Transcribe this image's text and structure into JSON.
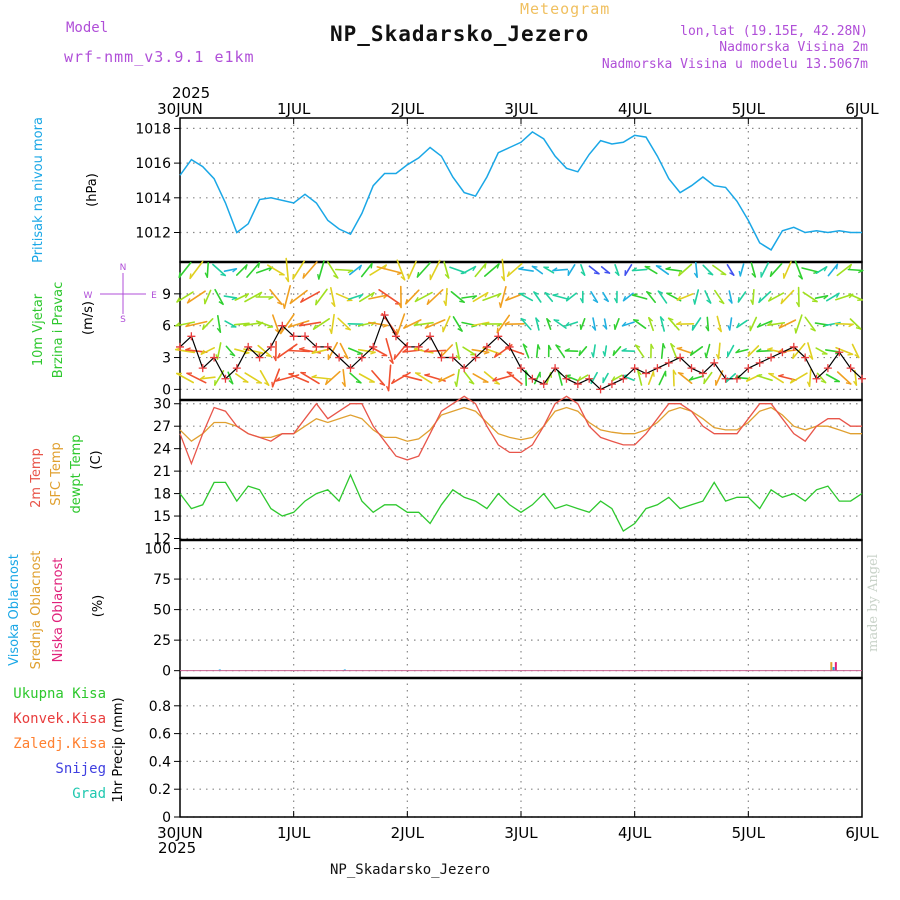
{
  "header": {
    "model_label": "Model",
    "model_name": "wrf-nmm_v3.9.1 e1km",
    "meteogram_label": "Meteogram",
    "station_title": "NP_Skadarsko_Jezero",
    "lonlat": "lon,lat (19.15E, 42.28N)",
    "altitude": "Nadmorska Visina 2m",
    "model_altitude": "Nadmorska Visina u modelu 13.5067m"
  },
  "footer": {
    "station": "NP_Skadarsko_Jezero",
    "made_by": "made by Angel"
  },
  "time_axis": {
    "year": "2025",
    "labels": [
      "30JUN",
      "1JUL",
      "2JUL",
      "3JUL",
      "4JUL",
      "5JUL",
      "6JUL"
    ]
  },
  "colors": {
    "pressure": "#1aa7e6",
    "temp2m": "#e8554a",
    "sfc": "#e0a030",
    "dewpt": "#2ec82e",
    "high_cloud": "#1aa7e6",
    "mid_cloud": "#e0a030",
    "low_cloud": "#e0207a",
    "precip_total": "#2ec82e",
    "precip_conv": "#e83c3c",
    "precip_frozen": "#ff8030",
    "precip_snow": "#4040e0",
    "precip_graupel": "#20c8b0",
    "wind_title": "#2ec82e",
    "wind_mark": "#e83c3c"
  },
  "chart_data": [
    {
      "type": "line",
      "panel": "pressure",
      "ylabel_lines": [
        "Pritisak na nivou mora"
      ],
      "unit": "(hPa)",
      "ylim": [
        1010.3,
        1018.6
      ],
      "yticks": [
        1012,
        1014,
        1016,
        1018
      ],
      "grid": true,
      "x_days": [
        0,
        0.1,
        0.2,
        0.3,
        0.4,
        0.5,
        0.6,
        0.7,
        0.8,
        1.0,
        1.1,
        1.2,
        1.3,
        1.4,
        1.5,
        1.6,
        1.7,
        1.8,
        1.9,
        2.0,
        2.1,
        2.2,
        2.3,
        2.4,
        2.5,
        2.6,
        2.7,
        2.8,
        2.9,
        3.0,
        3.1,
        3.2,
        3.3,
        3.4,
        3.5,
        3.6,
        3.7,
        3.8,
        3.9,
        4.0,
        4.1,
        4.2,
        4.3,
        4.4,
        4.5,
        4.6,
        4.7,
        4.8,
        4.9,
        5.0,
        5.1,
        5.2,
        5.3,
        5.4,
        5.5,
        5.6,
        5.7,
        5.8,
        5.9,
        6.0
      ],
      "series": [
        {
          "values": [
            1015.3,
            1016.2,
            1015.8,
            1015.1,
            1013.7,
            1012.0,
            1012.5,
            1013.9,
            1014.0,
            1013.7,
            1014.2,
            1013.7,
            1012.7,
            1012.2,
            1011.9,
            1013.1,
            1014.7,
            1015.4,
            1015.4,
            1015.9,
            1016.3,
            1016.9,
            1016.4,
            1015.2,
            1014.3,
            1014.1,
            1015.2,
            1016.6,
            1016.9,
            1017.2,
            1017.8,
            1017.4,
            1016.4,
            1015.7,
            1015.5,
            1016.5,
            1017.3,
            1017.1,
            1017.2,
            1017.6,
            1017.5,
            1016.4,
            1015.1,
            1014.3,
            1014.7,
            1015.2,
            1014.7,
            1014.6,
            1013.8,
            1012.7,
            1011.4,
            1011.0,
            1012.1,
            1012.3,
            1012.0,
            1012.1,
            1012.0,
            1012.1,
            1012.0,
            1012.0
          ]
        }
      ]
    },
    {
      "type": "line",
      "panel": "wind",
      "ylabel_lines": [
        "10m Vjetar",
        "Brzina i Pravac"
      ],
      "unit": "(m/s)",
      "compass": [
        "N",
        "W",
        "E",
        "S"
      ],
      "ylim": [
        -1,
        12
      ],
      "yticks": [
        0,
        3,
        6,
        9
      ],
      "grid": true,
      "x_days": [
        0,
        0.1,
        0.2,
        0.3,
        0.4,
        0.5,
        0.6,
        0.7,
        0.8,
        0.9,
        1.0,
        1.1,
        1.2,
        1.3,
        1.4,
        1.5,
        1.6,
        1.7,
        1.8,
        1.9,
        2.0,
        2.1,
        2.2,
        2.3,
        2.4,
        2.5,
        2.6,
        2.7,
        2.8,
        2.9,
        3.0,
        3.1,
        3.2,
        3.3,
        3.4,
        3.5,
        3.6,
        3.7,
        3.8,
        3.9,
        4.0,
        4.1,
        4.2,
        4.3,
        4.4,
        4.5,
        4.6,
        4.7,
        4.8,
        4.9,
        5.0,
        5.1,
        5.2,
        5.3,
        5.4,
        5.5,
        5.6,
        5.7,
        5.8,
        5.9,
        6.0
      ],
      "series": [
        {
          "name": "speed",
          "values": [
            4,
            5,
            2,
            3,
            1,
            2,
            4,
            3,
            4,
            6,
            5,
            5,
            4,
            4,
            3,
            2,
            3,
            4,
            7,
            5,
            4,
            4,
            5,
            3,
            3,
            2,
            3,
            4,
            5,
            4,
            2,
            1,
            0.5,
            2,
            1,
            0.5,
            1,
            0,
            0.5,
            1,
            2,
            1.5,
            2,
            2.5,
            3,
            2,
            1.5,
            2.5,
            1,
            1,
            2,
            2.5,
            3,
            3.5,
            4,
            3,
            1,
            2,
            3.5,
            2,
            1
          ]
        }
      ]
    },
    {
      "type": "line",
      "panel": "temperature",
      "ylabel_lines": [
        "2m Temp",
        "SFC Temp",
        "dewpt Temp"
      ],
      "unit": "(C)",
      "ylim": [
        11.8,
        30.5
      ],
      "yticks": [
        12,
        15,
        18,
        21,
        24,
        27,
        30
      ],
      "grid": true,
      "x_days": [
        0,
        0.1,
        0.2,
        0.3,
        0.4,
        0.5,
        0.6,
        0.7,
        0.8,
        0.9,
        1.0,
        1.1,
        1.2,
        1.3,
        1.4,
        1.5,
        1.6,
        1.7,
        1.8,
        1.9,
        2.0,
        2.1,
        2.2,
        2.3,
        2.4,
        2.5,
        2.6,
        2.7,
        2.8,
        2.9,
        3.0,
        3.1,
        3.2,
        3.3,
        3.4,
        3.5,
        3.6,
        3.7,
        3.8,
        3.9,
        4.0,
        4.1,
        4.2,
        4.3,
        4.4,
        4.5,
        4.6,
        4.7,
        4.8,
        4.9,
        5.0,
        5.1,
        5.2,
        5.3,
        5.4,
        5.5,
        5.6,
        5.7,
        5.8,
        5.9,
        6.0
      ],
      "series": [
        {
          "name": "2m Temp",
          "values": [
            26,
            22,
            26,
            29.5,
            29,
            27,
            26,
            25.5,
            25,
            26,
            26,
            28,
            30,
            28,
            29,
            30,
            30,
            27,
            25,
            23,
            22.5,
            23,
            26,
            29,
            30,
            31,
            30,
            27,
            24.5,
            23.5,
            23.5,
            24.5,
            27,
            30,
            31,
            30,
            27,
            25.5,
            25,
            24.5,
            24.5,
            26,
            28,
            30,
            30,
            29,
            27,
            26,
            26,
            26,
            28,
            30,
            30,
            28,
            26,
            25,
            27,
            28,
            28,
            27,
            27
          ]
        },
        {
          "name": "SFC Temp",
          "values": [
            26.5,
            25,
            26,
            27.5,
            27.5,
            27,
            26,
            25.5,
            25.5,
            26,
            26,
            27,
            28,
            27.5,
            28,
            28.5,
            28,
            26.5,
            25.5,
            25.5,
            25,
            25.3,
            26.5,
            28.5,
            29,
            29.5,
            29,
            27.5,
            26,
            25.5,
            25.2,
            25.5,
            27,
            29,
            29.5,
            29,
            27.5,
            26.5,
            26.2,
            26,
            26,
            26.5,
            27.5,
            29,
            29.5,
            29,
            28,
            26.8,
            26.5,
            26.5,
            27.5,
            29,
            29.5,
            28.5,
            27,
            26.5,
            27,
            27,
            26.5,
            26,
            26
          ]
        },
        {
          "name": "dewpt Temp",
          "values": [
            18,
            16,
            16.5,
            19.5,
            19.5,
            17,
            19,
            18.5,
            16,
            15,
            15.5,
            17,
            18,
            18.5,
            17,
            20.5,
            17,
            15.5,
            16.5,
            16.5,
            15.5,
            15.5,
            14,
            16.5,
            18.5,
            17.5,
            17,
            16,
            18,
            16.5,
            15.5,
            16.5,
            18,
            16,
            16.5,
            16,
            15.5,
            17,
            16,
            13,
            14,
            16,
            16.5,
            17.5,
            16,
            16.5,
            17,
            19.5,
            17,
            17.5,
            17.5,
            16,
            18.5,
            17.5,
            18,
            17,
            18.5,
            19,
            17,
            17,
            18
          ]
        }
      ]
    },
    {
      "type": "bar",
      "panel": "cloud",
      "ylabel_lines": [
        "Visoka Oblacnost",
        "Srednja Oblacnost",
        "Niska Oblacnost"
      ],
      "unit": "(%)",
      "ylim": [
        -6,
        107
      ],
      "yticks": [
        0,
        25,
        50,
        75,
        100
      ],
      "grid": true,
      "series": [
        {
          "name": "Visoka Oblacnost",
          "x_days": [
            0.35,
            1.45,
            5.75
          ],
          "values": [
            1,
            1,
            3
          ]
        },
        {
          "name": "Srednja Oblacnost",
          "x_days": [
            5.73
          ],
          "values": [
            7
          ]
        },
        {
          "name": "Niska Oblacnost",
          "x_days": [
            5.77
          ],
          "values": [
            7
          ]
        }
      ]
    },
    {
      "type": "bar",
      "panel": "precip",
      "ylabel_lines": [
        "1hr Precip (mm)"
      ],
      "legend": [
        "Ukupna Kisa",
        "Konvek.Kisa",
        "Zaledj.Kisa",
        "Snijeg",
        "Grad"
      ],
      "ylim": [
        0,
        1.0
      ],
      "yticks": [
        0,
        0.2,
        0.4,
        0.6,
        0.8
      ],
      "grid": true,
      "series": [
        {
          "name": "Ukupna Kisa",
          "values": []
        },
        {
          "name": "Konvek.Kisa",
          "values": []
        },
        {
          "name": "Zaledj.Kisa",
          "values": []
        },
        {
          "name": "Snijeg",
          "values": []
        },
        {
          "name": "Grad",
          "values": []
        }
      ]
    }
  ]
}
